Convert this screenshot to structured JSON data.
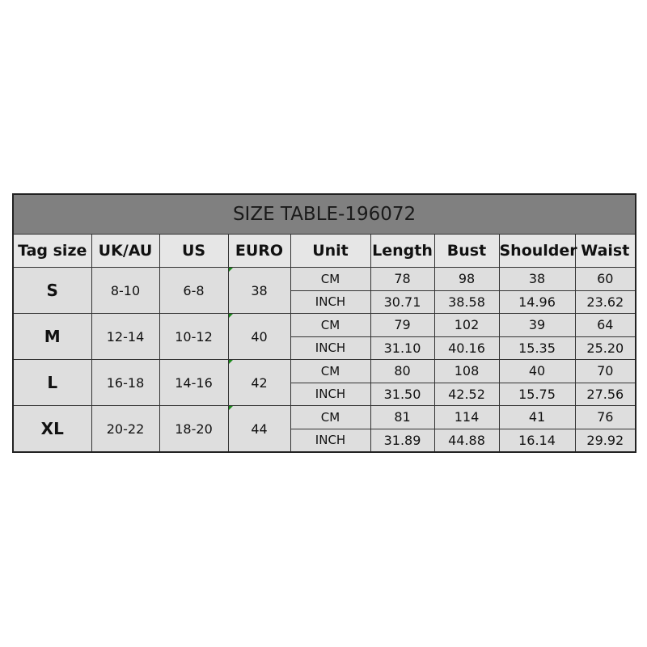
{
  "title": "SIZE TABLE-196072",
  "headers": [
    "Tag size",
    "UK/AU",
    "US",
    "EURO",
    "Unit",
    "Length",
    "Bust",
    "Shoulder",
    "Waist"
  ],
  "rows": [
    {
      "tag": "S",
      "uk_au": "8-10",
      "us": "6-8",
      "euro": "38",
      "cm": {
        "unit": "CM",
        "length": "78",
        "bust": "98",
        "shoulder": "38",
        "waist": "60"
      },
      "inch": {
        "unit": "INCH",
        "length": "30.71",
        "bust": "38.58",
        "shoulder": "14.96",
        "waist": "23.62"
      }
    },
    {
      "tag": "M",
      "uk_au": "12-14",
      "us": "10-12",
      "euro": "40",
      "cm": {
        "unit": "CM",
        "length": "79",
        "bust": "102",
        "shoulder": "39",
        "waist": "64"
      },
      "inch": {
        "unit": "INCH",
        "length": "31.10",
        "bust": "40.16",
        "shoulder": "15.35",
        "waist": "25.20"
      }
    },
    {
      "tag": "L",
      "uk_au": "16-18",
      "us": "14-16",
      "euro": "42",
      "cm": {
        "unit": "CM",
        "length": "80",
        "bust": "108",
        "shoulder": "40",
        "waist": "70"
      },
      "inch": {
        "unit": "INCH",
        "length": "31.50",
        "bust": "42.52",
        "shoulder": "15.75",
        "waist": "27.56"
      }
    },
    {
      "tag": "XL",
      "uk_au": "20-22",
      "us": "18-20",
      "euro": "44",
      "cm": {
        "unit": "CM",
        "length": "81",
        "bust": "114",
        "shoulder": "41",
        "waist": "76"
      },
      "inch": {
        "unit": "INCH",
        "length": "31.89",
        "bust": "44.88",
        "shoulder": "16.14",
        "waist": "29.92"
      }
    }
  ]
}
